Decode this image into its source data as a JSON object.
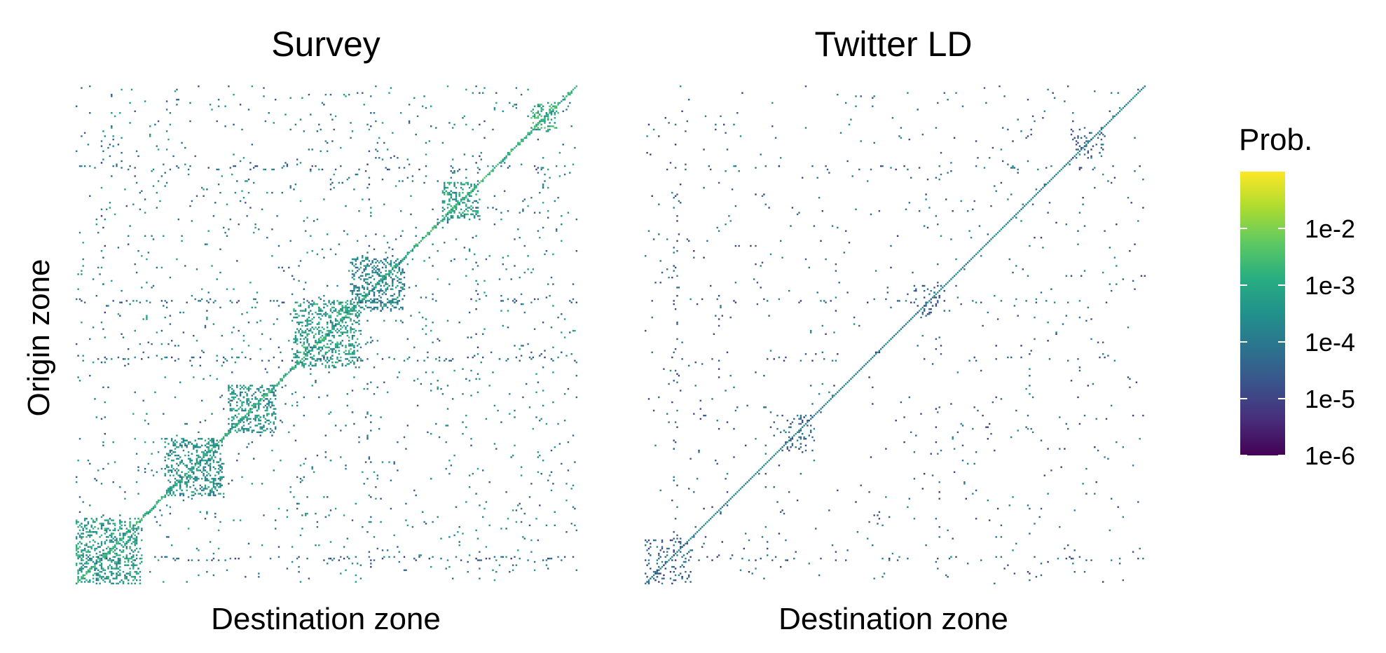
{
  "chart_data": [
    {
      "type": "heatmap",
      "title": "Survey",
      "xlabel": "Destination zone",
      "ylabel": "Origin zone",
      "scale": "log",
      "colormap": "viridis",
      "density": "high"
    },
    {
      "type": "heatmap",
      "title": "Twitter LD",
      "xlabel": "Destination zone",
      "ylabel": "",
      "scale": "log",
      "colormap": "viridis",
      "density": "low"
    }
  ],
  "legend": {
    "title": "Prob.",
    "scale": "log",
    "range": [
      1e-06,
      0.1
    ],
    "ticks": [
      "1e-2",
      "1e-3",
      "1e-4",
      "1e-5",
      "1e-6"
    ],
    "tick_values": [
      0.01,
      0.001,
      0.0001,
      1e-05,
      1e-06
    ]
  }
}
